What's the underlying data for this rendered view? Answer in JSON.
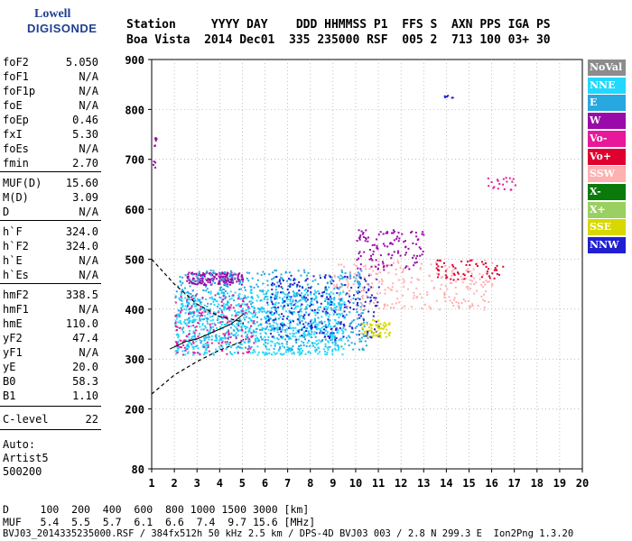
{
  "logo": {
    "line1": "Lowell",
    "line2": "DIGISONDE"
  },
  "header": {
    "line1": "Station     YYYY DAY    DDD HHMMSS P1  FFS S  AXN PPS IGA PS",
    "line2": "Boa Vista  2014 Dec01  335 235000 RSF  005 2  713 100 03+ 30"
  },
  "params": [
    {
      "name": "foF2",
      "value": "5.050"
    },
    {
      "name": "foF1",
      "value": "N/A"
    },
    {
      "name": "foF1p",
      "value": "N/A"
    },
    {
      "name": "foE",
      "value": "N/A"
    },
    {
      "name": "foEp",
      "value": "0.46"
    },
    {
      "name": "fxI",
      "value": "5.30"
    },
    {
      "name": "foEs",
      "value": "N/A"
    },
    {
      "name": "fmin",
      "value": "2.70"
    },
    {
      "name": "MUF(D)",
      "value": "15.60"
    },
    {
      "name": "M(D)",
      "value": "3.09"
    },
    {
      "name": "D",
      "value": "N/A"
    },
    {
      "name": "h`F",
      "value": "324.0"
    },
    {
      "name": "h`F2",
      "value": "324.0"
    },
    {
      "name": "h`E",
      "value": "N/A"
    },
    {
      "name": "h`Es",
      "value": "N/A"
    },
    {
      "name": "hmF2",
      "value": "338.5"
    },
    {
      "name": "hmF1",
      "value": "N/A"
    },
    {
      "name": "hmE",
      "value": "110.0"
    },
    {
      "name": "yF2",
      "value": "47.4"
    },
    {
      "name": "yF1",
      "value": "N/A"
    },
    {
      "name": "yE",
      "value": "20.0"
    },
    {
      "name": "B0",
      "value": "58.3"
    },
    {
      "name": "B1",
      "value": "1.10"
    },
    {
      "name": "C-level",
      "value": "22"
    }
  ],
  "auto": {
    "line1": "Auto:",
    "line2": "Artist5",
    "line3": "500200"
  },
  "footer": {
    "line1": "D     100  200  400  600  800 1000 1500 3000 [km]",
    "line2": "MUF   5.4  5.5  5.7  6.1  6.6  7.4  9.7 15.6 [MHz]",
    "line3": "BVJ03_2014335235000.RSF / 384fx512h 50 kHz 2.5 km / DPS-4D BVJ03 003 / 2.8 N 299.3 E  Ion2Png 1.3.20"
  },
  "legend": [
    {
      "label": "NoVal",
      "color": "#8c8c8c"
    },
    {
      "label": "NNE",
      "color": "#22d8ff"
    },
    {
      "label": "E",
      "color": "#28a8e0"
    },
    {
      "label": "W",
      "color": "#9a0aa8"
    },
    {
      "label": "Vo-",
      "color": "#e8189a"
    },
    {
      "label": "Vo+",
      "color": "#e00030"
    },
    {
      "label": "SSW",
      "color": "#ffb0b0"
    },
    {
      "label": "X-",
      "color": "#0a7a0a"
    },
    {
      "label": "X+",
      "color": "#9ad060"
    },
    {
      "label": "SSE",
      "color": "#d8d800"
    },
    {
      "label": "NNW",
      "color": "#2020d0"
    }
  ],
  "chart_data": {
    "type": "scatter",
    "title": "",
    "xlabel": "",
    "ylabel": "",
    "xlim": [
      1,
      20
    ],
    "ylim": [
      80,
      900
    ],
    "x_ticks": [
      1,
      2,
      3,
      4,
      5,
      6,
      7,
      8,
      9,
      10,
      11,
      12,
      13,
      14,
      15,
      16,
      17,
      18,
      19,
      20
    ],
    "y_ticks": [
      80,
      200,
      300,
      400,
      500,
      600,
      700,
      800,
      900
    ],
    "grid": "dotted",
    "clusters": [
      {
        "name": "W",
        "x": [
          2.5,
          5.0
        ],
        "y": [
          450,
          475
        ],
        "count": 180
      },
      {
        "name": "NNE",
        "x": [
          2.0,
          9.5
        ],
        "y": [
          310,
          440
        ],
        "count": 900
      },
      {
        "name": "E",
        "x": [
          2.0,
          10.5
        ],
        "y": [
          320,
          480
        ],
        "count": 600
      },
      {
        "name": "NNW",
        "x": [
          6.0,
          11.0
        ],
        "y": [
          340,
          470
        ],
        "count": 250
      },
      {
        "name": "Vo-",
        "x": [
          2.0,
          5.5
        ],
        "y": [
          310,
          430
        ],
        "count": 150
      },
      {
        "name": "SSW",
        "x": [
          9.0,
          16.0
        ],
        "y": [
          400,
          500
        ],
        "count": 250
      },
      {
        "name": "W",
        "x": [
          10.0,
          13.0
        ],
        "y": [
          480,
          560
        ],
        "count": 120
      },
      {
        "name": "SSE",
        "x": [
          10.2,
          11.5
        ],
        "y": [
          345,
          380
        ],
        "count": 60
      },
      {
        "name": "Vo+",
        "x": [
          13.5,
          16.5
        ],
        "y": [
          460,
          500
        ],
        "count": 60
      },
      {
        "name": "Vo-",
        "x": [
          15.8,
          17.1
        ],
        "y": [
          640,
          665
        ],
        "count": 20
      },
      {
        "name": "NNW",
        "x": [
          13.8,
          14.3
        ],
        "y": [
          825,
          830
        ],
        "count": 6
      },
      {
        "name": "W",
        "x": [
          1.0,
          1.2
        ],
        "y": [
          680,
          750
        ],
        "count": 10
      }
    ],
    "trace_lower": [
      [
        1,
        230
      ],
      [
        2,
        268
      ],
      [
        3,
        295
      ],
      [
        4,
        318
      ],
      [
        5,
        335
      ],
      [
        5.05,
        340
      ]
    ],
    "trace_upper": [
      [
        1,
        500
      ],
      [
        2,
        450
      ],
      [
        3,
        410
      ],
      [
        4,
        385
      ],
      [
        5,
        375
      ],
      [
        5.05,
        370
      ]
    ],
    "trace_profile": [
      [
        1.8,
        320
      ],
      [
        2.5,
        335
      ],
      [
        3.0,
        340
      ],
      [
        3.5,
        350
      ],
      [
        4.0,
        360
      ],
      [
        4.5,
        370
      ],
      [
        5.05,
        390
      ]
    ]
  }
}
